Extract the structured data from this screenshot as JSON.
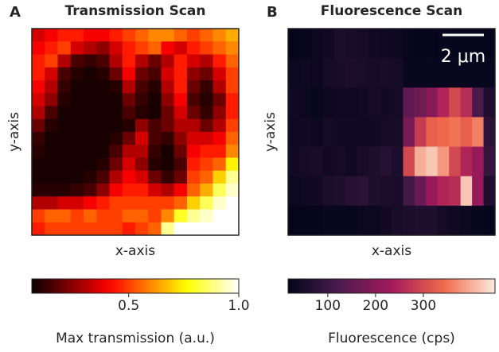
{
  "chart_data": [
    {
      "type": "heatmap",
      "panel_label": "A",
      "title": "Transmission Scan",
      "xlabel": "x-axis",
      "ylabel": "y-axis",
      "colormap": "hot",
      "values": [
        [
          0.35,
          0.4,
          0.45,
          0.45,
          0.4,
          0.4,
          0.45,
          0.5,
          0.55,
          0.6,
          0.6,
          0.55,
          0.5,
          0.55,
          0.6,
          0.65
        ],
        [
          0.4,
          0.45,
          0.5,
          0.35,
          0.3,
          0.25,
          0.35,
          0.45,
          0.5,
          0.55,
          0.4,
          0.35,
          0.45,
          0.5,
          0.55,
          0.6
        ],
        [
          0.45,
          0.5,
          0.3,
          0.15,
          0.12,
          0.15,
          0.3,
          0.45,
          0.3,
          0.2,
          0.3,
          0.45,
          0.35,
          0.3,
          0.45,
          0.55
        ],
        [
          0.45,
          0.35,
          0.15,
          0.1,
          0.08,
          0.1,
          0.2,
          0.4,
          0.2,
          0.15,
          0.35,
          0.45,
          0.25,
          0.2,
          0.35,
          0.5
        ],
        [
          0.4,
          0.3,
          0.12,
          0.08,
          0.08,
          0.08,
          0.1,
          0.3,
          0.15,
          0.1,
          0.3,
          0.45,
          0.2,
          0.12,
          0.3,
          0.5
        ],
        [
          0.35,
          0.25,
          0.1,
          0.08,
          0.08,
          0.08,
          0.08,
          0.2,
          0.12,
          0.08,
          0.25,
          0.4,
          0.15,
          0.1,
          0.2,
          0.45
        ],
        [
          0.3,
          0.15,
          0.08,
          0.08,
          0.08,
          0.08,
          0.08,
          0.15,
          0.1,
          0.08,
          0.2,
          0.35,
          0.2,
          0.12,
          0.25,
          0.45
        ],
        [
          0.2,
          0.1,
          0.08,
          0.08,
          0.08,
          0.08,
          0.08,
          0.1,
          0.25,
          0.15,
          0.2,
          0.3,
          0.3,
          0.2,
          0.3,
          0.5
        ],
        [
          0.12,
          0.08,
          0.08,
          0.08,
          0.08,
          0.08,
          0.1,
          0.2,
          0.35,
          0.15,
          0.12,
          0.25,
          0.35,
          0.35,
          0.4,
          0.55
        ],
        [
          0.1,
          0.08,
          0.08,
          0.08,
          0.08,
          0.08,
          0.15,
          0.3,
          0.3,
          0.12,
          0.08,
          0.2,
          0.4,
          0.45,
          0.45,
          0.6
        ],
        [
          0.08,
          0.08,
          0.08,
          0.08,
          0.08,
          0.1,
          0.2,
          0.35,
          0.25,
          0.1,
          0.08,
          0.15,
          0.45,
          0.5,
          0.55,
          0.75
        ],
        [
          0.08,
          0.08,
          0.08,
          0.08,
          0.1,
          0.15,
          0.3,
          0.4,
          0.35,
          0.2,
          0.12,
          0.2,
          0.5,
          0.55,
          0.7,
          0.9
        ],
        [
          0.1,
          0.1,
          0.1,
          0.12,
          0.15,
          0.25,
          0.4,
          0.45,
          0.45,
          0.35,
          0.3,
          0.4,
          0.55,
          0.65,
          0.85,
          0.95
        ],
        [
          0.3,
          0.3,
          0.35,
          0.35,
          0.4,
          0.45,
          0.5,
          0.5,
          0.5,
          0.5,
          0.5,
          0.55,
          0.7,
          0.85,
          0.95,
          1
        ],
        [
          0.5,
          0.55,
          0.55,
          0.5,
          0.55,
          0.5,
          0.5,
          0.55,
          0.55,
          0.5,
          0.6,
          0.8,
          0.9,
          0.95,
          1,
          1
        ],
        [
          0.45,
          0.5,
          0.5,
          0.5,
          0.5,
          0.5,
          0.5,
          0.45,
          0.5,
          0.55,
          0.9,
          1,
          1,
          1,
          1,
          1
        ]
      ],
      "colorbar": {
        "label": "Max transmission (a.u.)",
        "lim": [
          0.06,
          1
        ],
        "ticks": [
          0.5,
          {
            "value": 1,
            "label": "1.0"
          }
        ]
      }
    },
    {
      "type": "heatmap",
      "panel_label": "B",
      "title": "Fluorescence Scan",
      "xlabel": "x-axis",
      "ylabel": "y-axis",
      "colormap": "rocket",
      "scale_bar": "2 μm",
      "values": [
        [
          20,
          25,
          30,
          40,
          55,
          50,
          45,
          40,
          35,
          30,
          25,
          20,
          20,
          25,
          20,
          20,
          20,
          20
        ],
        [
          30,
          35,
          30,
          45,
          50,
          55,
          50,
          45,
          50,
          45,
          25,
          25,
          25,
          25,
          25,
          25,
          25,
          25
        ],
        [
          40,
          30,
          25,
          30,
          35,
          35,
          40,
          45,
          40,
          45,
          150,
          170,
          200,
          250,
          300,
          260,
          120,
          60
        ],
        [
          35,
          40,
          30,
          45,
          40,
          40,
          35,
          40,
          45,
          50,
          180,
          280,
          330,
          340,
          350,
          330,
          360,
          80
        ],
        [
          40,
          45,
          50,
          40,
          45,
          35,
          50,
          60,
          70,
          55,
          300,
          400,
          420,
          380,
          300,
          250,
          220,
          90
        ],
        [
          30,
          35,
          40,
          55,
          60,
          70,
          75,
          60,
          55,
          50,
          110,
          160,
          220,
          250,
          260,
          420,
          220,
          60
        ],
        [
          20,
          20,
          20,
          25,
          25,
          25,
          30,
          30,
          40,
          50,
          55,
          60,
          60,
          45,
          35,
          30,
          25,
          20
        ]
      ],
      "colorbar": {
        "label": "Fluorescence (cps)",
        "lim": [
          17,
          450
        ],
        "ticks": [
          100,
          200,
          300
        ]
      }
    }
  ]
}
